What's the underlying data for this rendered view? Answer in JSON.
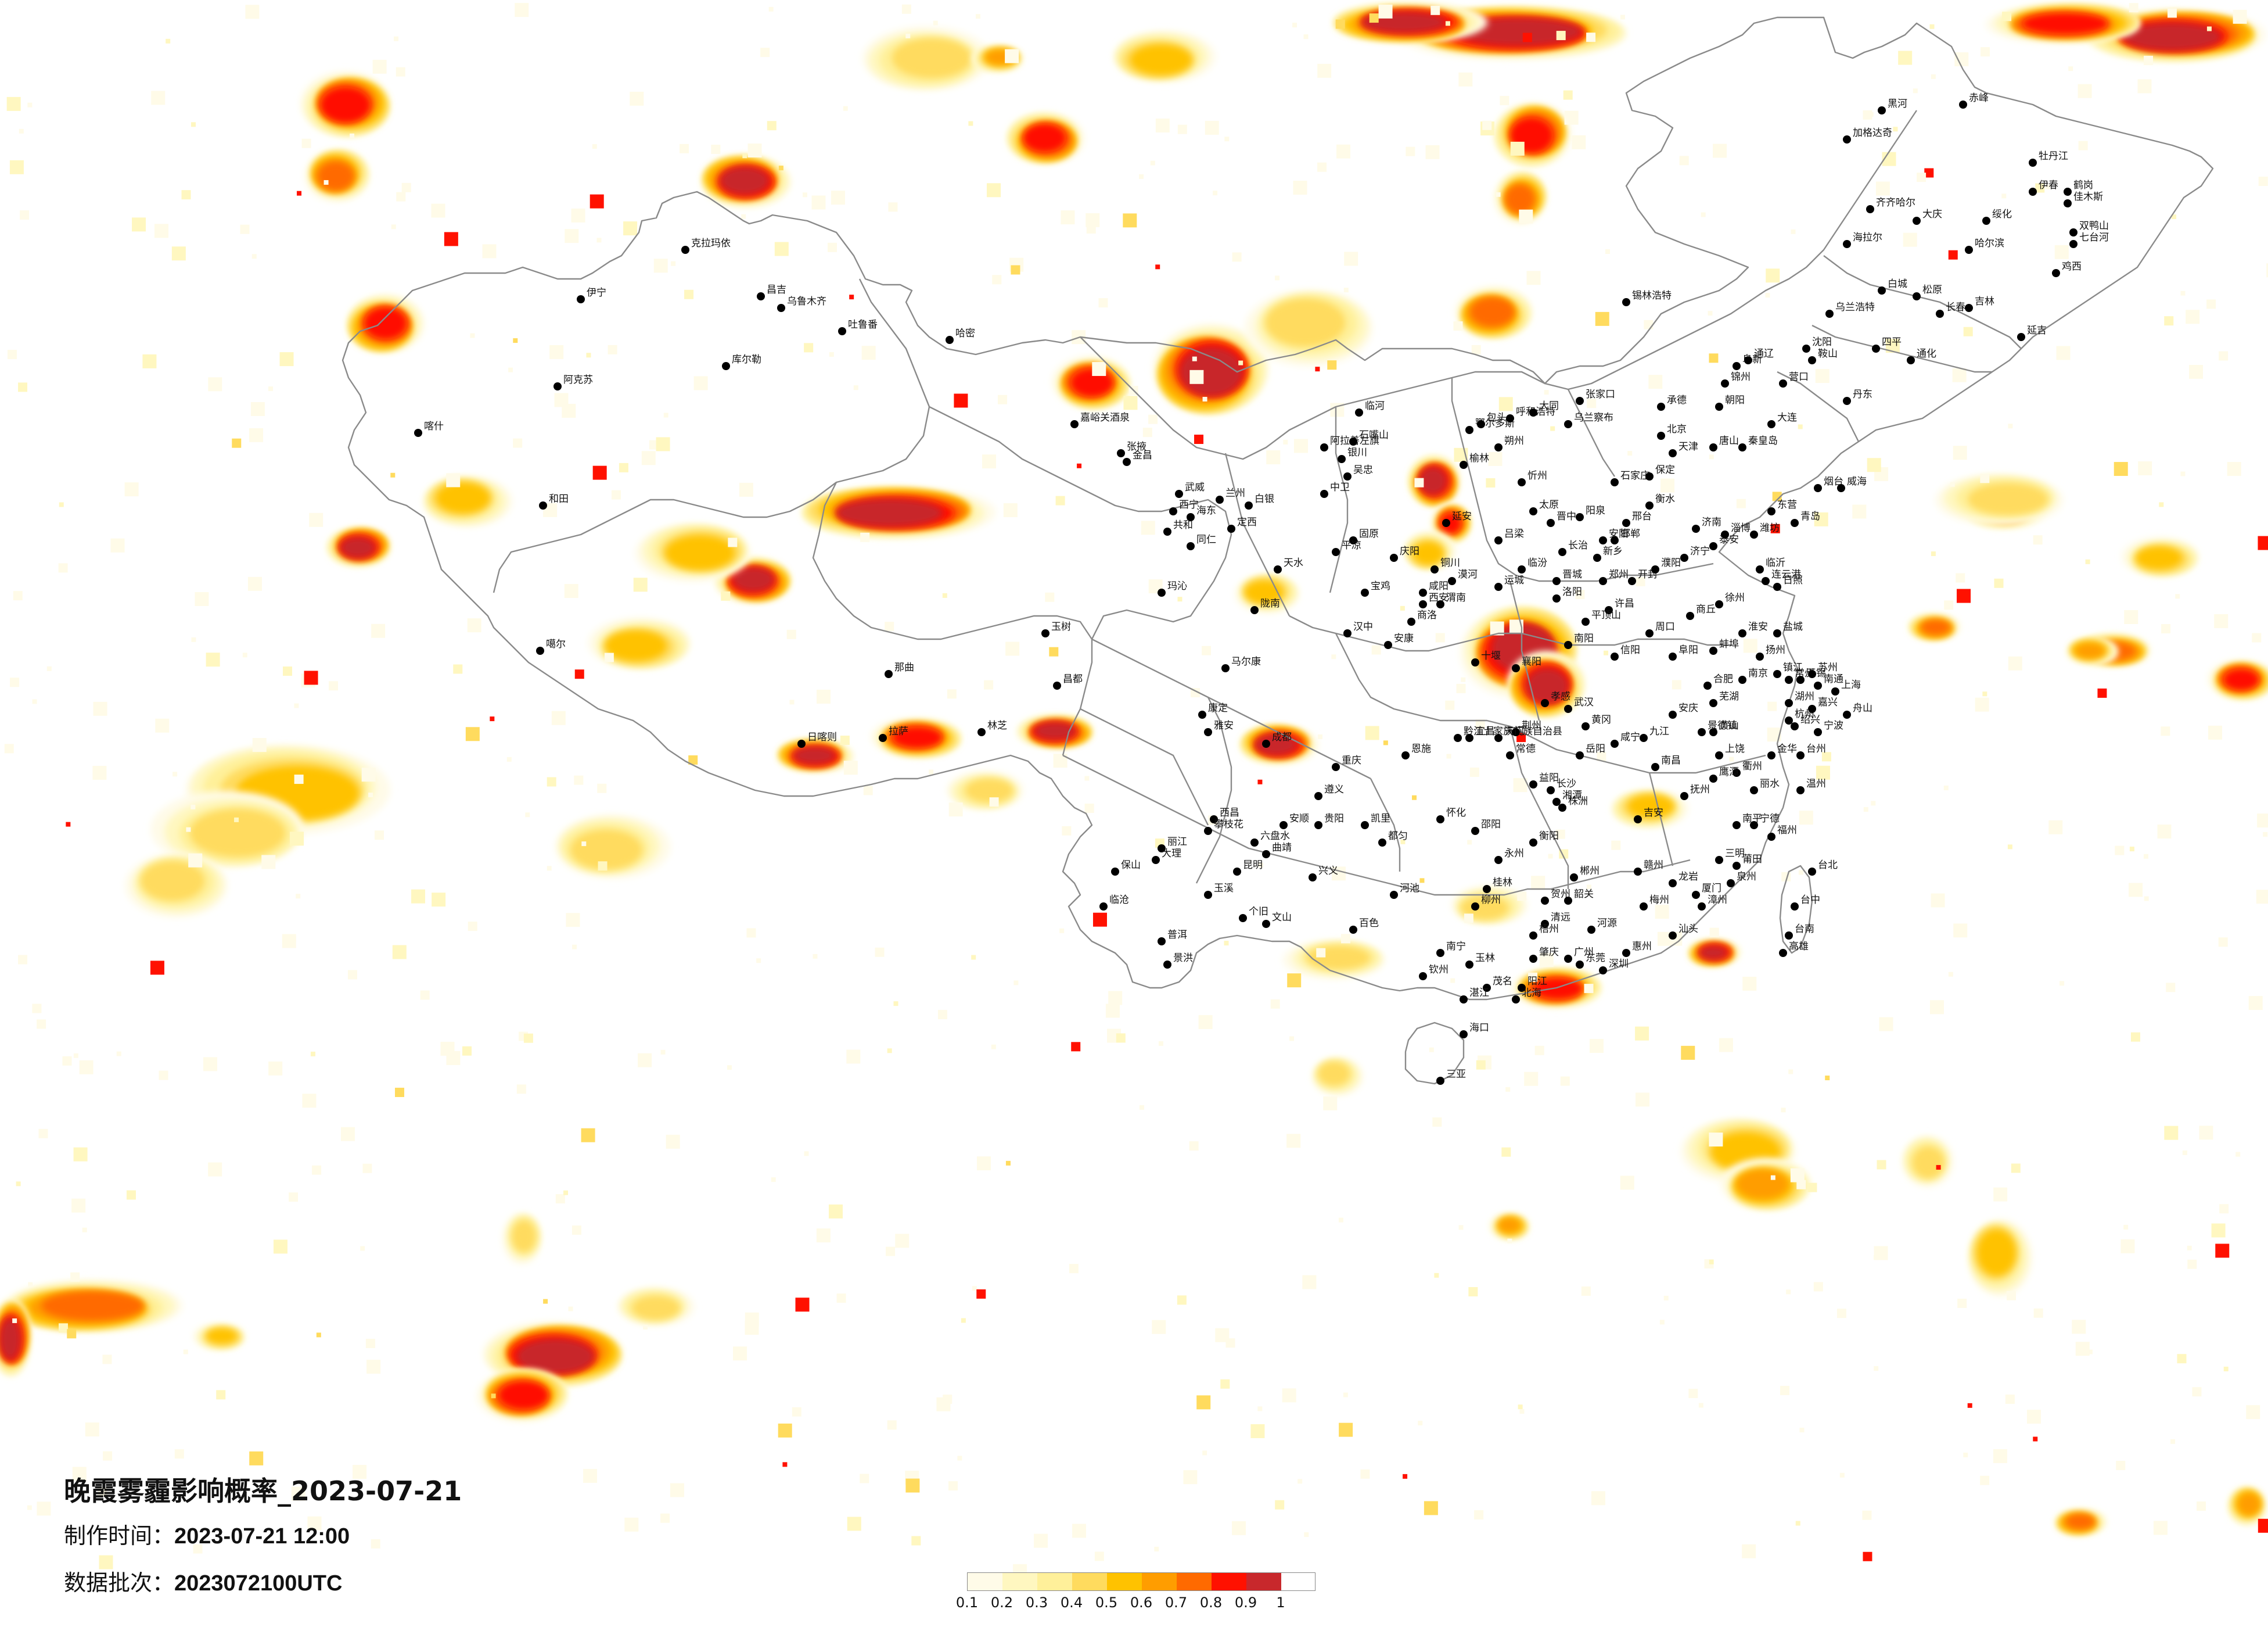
{
  "title": "晚霞雾霾影响概率_2023-07-21",
  "made_time_label": "制作时间：",
  "made_time_value": "2023-07-21 12:00",
  "batch_label": "数据批次：",
  "batch_value": "2023072100UTC",
  "legend": {
    "colors": [
      "#fffbe8",
      "#fff7c0",
      "#fff09a",
      "#ffdb5e",
      "#ffc200",
      "#ff9d00",
      "#ff6a00",
      "#ff1100",
      "#c8282c"
    ],
    "ticks": [
      "0.1",
      "0.2",
      "0.3",
      "0.4",
      "0.5",
      "0.6",
      "0.7",
      "0.8",
      "0.9",
      "1"
    ]
  },
  "cities": [
    {
      "name": "克拉玛依"
    },
    {
      "name": "昌吉"
    },
    {
      "name": "乌鲁木齐"
    },
    {
      "name": "吐鲁番"
    },
    {
      "name": "哈密"
    },
    {
      "name": "库尔勒"
    },
    {
      "name": "阿克苏"
    },
    {
      "name": "喀什"
    },
    {
      "name": "和田"
    },
    {
      "name": "伊宁"
    },
    {
      "name": "嘉峪关酒泉"
    },
    {
      "name": "张掖"
    },
    {
      "name": "金昌"
    },
    {
      "name": "武威"
    },
    {
      "name": "西宁"
    },
    {
      "name": "海东"
    },
    {
      "name": "共和"
    },
    {
      "name": "同仁"
    },
    {
      "name": "玛沁"
    },
    {
      "name": "玉树"
    },
    {
      "name": "噶尔"
    },
    {
      "name": "那曲"
    },
    {
      "name": "拉萨"
    },
    {
      "name": "日喀则"
    },
    {
      "name": "林芝"
    },
    {
      "name": "昌都"
    },
    {
      "name": "马尔康"
    },
    {
      "name": "康定"
    },
    {
      "name": "雅安"
    },
    {
      "name": "成都"
    },
    {
      "name": "西昌"
    },
    {
      "name": "攀枝花"
    },
    {
      "name": "丽江"
    },
    {
      "name": "大理"
    },
    {
      "name": "保山"
    },
    {
      "name": "临沧"
    },
    {
      "name": "普洱"
    },
    {
      "name": "景洪"
    },
    {
      "name": "昆明"
    },
    {
      "name": "玉溪"
    },
    {
      "name": "个旧"
    },
    {
      "name": "文山"
    },
    {
      "name": "曲靖"
    },
    {
      "name": "六盘水"
    },
    {
      "name": "安顺"
    },
    {
      "name": "贵阳"
    },
    {
      "name": "遵义"
    },
    {
      "name": "凯里"
    },
    {
      "name": "都匀"
    },
    {
      "name": "兴义"
    },
    {
      "name": "重庆"
    },
    {
      "name": "黔江土家族苗族自治县"
    },
    {
      "name": "阿拉善左旗"
    },
    {
      "name": "银川"
    },
    {
      "name": "石嘴山"
    },
    {
      "name": "吴忠"
    },
    {
      "name": "中卫"
    },
    {
      "name": "固原"
    },
    {
      "name": "兰州"
    },
    {
      "name": "白银"
    },
    {
      "name": "定西"
    },
    {
      "name": "天水"
    },
    {
      "name": "陇南"
    },
    {
      "name": "平凉"
    },
    {
      "name": "庆阳"
    },
    {
      "name": "汉中"
    },
    {
      "name": "安康"
    },
    {
      "name": "商洛"
    },
    {
      "name": "西安"
    },
    {
      "name": "宝鸡"
    },
    {
      "name": "咸阳"
    },
    {
      "name": "铜川"
    },
    {
      "name": "渭南"
    },
    {
      "name": "延安"
    },
    {
      "name": "榆林"
    },
    {
      "name": "鄂尔多斯"
    },
    {
      "name": "包头"
    },
    {
      "name": "呼和浩特"
    },
    {
      "name": "乌兰察布"
    },
    {
      "name": "临河"
    },
    {
      "name": "锡林浩特"
    },
    {
      "name": "张家口"
    },
    {
      "name": "北京"
    },
    {
      "name": "天津"
    },
    {
      "name": "唐山"
    },
    {
      "name": "承德"
    },
    {
      "name": "秦皇岛"
    },
    {
      "name": "石家庄"
    },
    {
      "name": "保定"
    },
    {
      "name": "衡水"
    },
    {
      "name": "邢台"
    },
    {
      "name": "邯郸"
    },
    {
      "name": "大同"
    },
    {
      "name": "朔州"
    },
    {
      "name": "忻州"
    },
    {
      "name": "太原"
    },
    {
      "name": "阳泉"
    },
    {
      "name": "晋中"
    },
    {
      "name": "长治"
    },
    {
      "name": "晋城"
    },
    {
      "name": "临汾"
    },
    {
      "name": "运城"
    },
    {
      "name": "吕梁"
    },
    {
      "name": "济南"
    },
    {
      "name": "泰安"
    },
    {
      "name": "济宁"
    },
    {
      "name": "临沂"
    },
    {
      "name": "潍坊"
    },
    {
      "name": "淄博"
    },
    {
      "name": "东营"
    },
    {
      "name": "烟台"
    },
    {
      "name": "威海"
    },
    {
      "name": "青岛"
    },
    {
      "name": "日照"
    },
    {
      "name": "郑州"
    },
    {
      "name": "开封"
    },
    {
      "name": "洛阳"
    },
    {
      "name": "许昌"
    },
    {
      "name": "平顶山"
    },
    {
      "name": "南阳"
    },
    {
      "name": "信阳"
    },
    {
      "name": "周口"
    },
    {
      "name": "商丘"
    },
    {
      "name": "新乡"
    },
    {
      "name": "安阳"
    },
    {
      "name": "濮阳"
    },
    {
      "name": "连云港"
    },
    {
      "name": "徐州"
    },
    {
      "name": "淮安"
    },
    {
      "name": "盐城"
    },
    {
      "name": "扬州"
    },
    {
      "name": "南京"
    },
    {
      "name": "镇江"
    },
    {
      "name": "常州"
    },
    {
      "name": "无锡"
    },
    {
      "name": "苏州"
    },
    {
      "name": "南通"
    },
    {
      "name": "上海"
    },
    {
      "name": "合肥"
    },
    {
      "name": "蚌埠"
    },
    {
      "name": "阜阳"
    },
    {
      "name": "安庆"
    },
    {
      "name": "芜湖"
    },
    {
      "name": "黄山"
    },
    {
      "name": "杭州"
    },
    {
      "name": "绍兴"
    },
    {
      "name": "宁波"
    },
    {
      "name": "湖州"
    },
    {
      "name": "嘉兴"
    },
    {
      "name": "金华"
    },
    {
      "name": "衢州"
    },
    {
      "name": "丽水"
    },
    {
      "name": "台州"
    },
    {
      "name": "温州"
    },
    {
      "name": "舟山"
    },
    {
      "name": "武汉"
    },
    {
      "name": "孝感"
    },
    {
      "name": "十堰"
    },
    {
      "name": "襄阳"
    },
    {
      "name": "荆州"
    },
    {
      "name": "宜昌"
    },
    {
      "name": "恩施"
    },
    {
      "name": "黄冈"
    },
    {
      "name": "咸宁"
    },
    {
      "name": "天门"
    },
    {
      "name": "长沙"
    },
    {
      "name": "岳阳"
    },
    {
      "name": "常德"
    },
    {
      "name": "益阳"
    },
    {
      "name": "湘潭"
    },
    {
      "name": "株洲"
    },
    {
      "name": "衡阳"
    },
    {
      "name": "邵阳"
    },
    {
      "name": "怀化"
    },
    {
      "name": "永州"
    },
    {
      "name": "郴州"
    },
    {
      "name": "南昌"
    },
    {
      "name": "九江"
    },
    {
      "name": "上饶"
    },
    {
      "name": "景德镇"
    },
    {
      "name": "鹰潭"
    },
    {
      "name": "抚州"
    },
    {
      "name": "吉安"
    },
    {
      "name": "赣州"
    },
    {
      "name": "福州"
    },
    {
      "name": "南平"
    },
    {
      "name": "三明"
    },
    {
      "name": "宁德"
    },
    {
      "name": "莆田"
    },
    {
      "name": "泉州"
    },
    {
      "name": "厦门"
    },
    {
      "name": "漳州"
    },
    {
      "name": "龙岩"
    },
    {
      "name": "台北"
    },
    {
      "name": "台中"
    },
    {
      "name": "台南"
    },
    {
      "name": "高雄"
    },
    {
      "name": "广州"
    },
    {
      "name": "深圳"
    },
    {
      "name": "东莞"
    },
    {
      "name": "惠州"
    },
    {
      "name": "汕头"
    },
    {
      "name": "梅州"
    },
    {
      "name": "韶关"
    },
    {
      "name": "清远"
    },
    {
      "name": "肇庆"
    },
    {
      "name": "茂名"
    },
    {
      "name": "湛江"
    },
    {
      "name": "河源"
    },
    {
      "name": "阳江"
    },
    {
      "name": "南宁"
    },
    {
      "name": "柳州"
    },
    {
      "name": "桂林"
    },
    {
      "name": "梧州"
    },
    {
      "name": "玉林"
    },
    {
      "name": "北海"
    },
    {
      "name": "钦州"
    },
    {
      "name": "百色"
    },
    {
      "name": "河池"
    },
    {
      "name": "贺州"
    },
    {
      "name": "海口"
    },
    {
      "name": "三亚"
    },
    {
      "name": "沈阳"
    },
    {
      "name": "大连"
    },
    {
      "name": "鞍山"
    },
    {
      "name": "锦州"
    },
    {
      "name": "营口"
    },
    {
      "name": "阜新"
    },
    {
      "name": "朝阳"
    },
    {
      "name": "丹东"
    },
    {
      "name": "长春"
    },
    {
      "name": "吉林"
    },
    {
      "name": "四平"
    },
    {
      "name": "通化"
    },
    {
      "name": "延吉"
    },
    {
      "name": "白城"
    },
    {
      "name": "松原"
    },
    {
      "name": "哈尔滨"
    },
    {
      "name": "齐齐哈尔"
    },
    {
      "name": "大庆"
    },
    {
      "name": "绥化"
    },
    {
      "name": "伊春"
    },
    {
      "name": "佳木斯"
    },
    {
      "name": "鹤岗"
    },
    {
      "name": "双鸭山"
    },
    {
      "name": "七台河"
    },
    {
      "name": "鸡西"
    },
    {
      "name": "牡丹江"
    },
    {
      "name": "黑河"
    },
    {
      "name": "加格达奇"
    },
    {
      "name": "海拉尔"
    },
    {
      "name": "乌兰浩特"
    },
    {
      "name": "通辽"
    },
    {
      "name": "赤峰"
    },
    {
      "name": "漠河"
    }
  ]
}
